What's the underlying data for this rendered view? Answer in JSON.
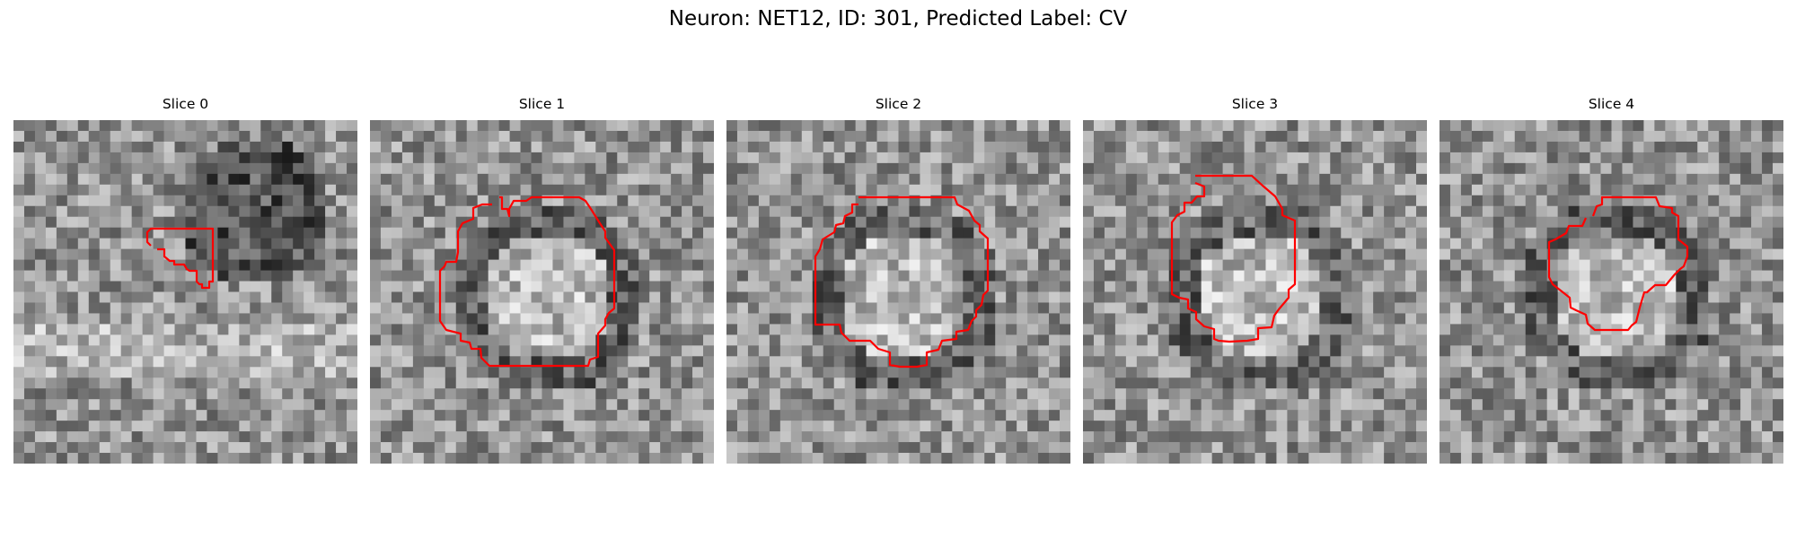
{
  "figure": {
    "title": "Neuron: NET12, ID: 301, Predicted Label: CV"
  },
  "panels": [
    {
      "title": "Slice 0",
      "seed": 11,
      "bright_center": false,
      "dark_blob": true,
      "contour_color": "#ff0000"
    },
    {
      "title": "Slice 1",
      "seed": 23,
      "bright_center": true,
      "dark_blob": false,
      "contour_color": "#ff0000"
    },
    {
      "title": "Slice 2",
      "seed": 37,
      "bright_center": true,
      "dark_blob": false,
      "contour_color": "#ff0000"
    },
    {
      "title": "Slice 3",
      "seed": 41,
      "bright_center": true,
      "dark_blob": false,
      "contour_color": "#ff0000"
    },
    {
      "title": "Slice 4",
      "seed": 59,
      "bright_center": true,
      "dark_blob": false,
      "contour_color": "#ff0000"
    }
  ],
  "colormap": "gray",
  "grid_size": 32
}
